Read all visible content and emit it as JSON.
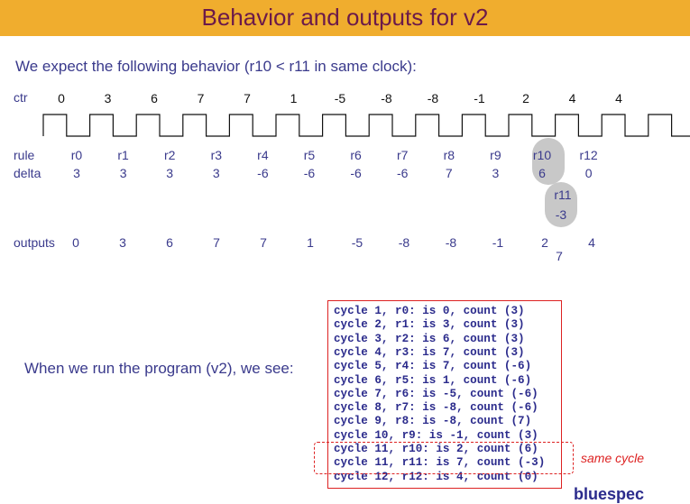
{
  "slide": {
    "title": "Behavior and outputs for v2",
    "intro": "We expect the following behavior (r10 < r11 in same clock):",
    "run_text": "When we run the program (v2), we see:",
    "same_cycle": "same cycle",
    "logo": "bluespec"
  },
  "timeline": {
    "ctr_label": "ctr",
    "ctr_values": [
      "0",
      "3",
      "6",
      "7",
      "7",
      "1",
      "-5",
      "-8",
      "-8",
      "-1",
      "2",
      "4",
      "4"
    ],
    "rule_label": "rule",
    "rules": [
      "r0",
      "r1",
      "r2",
      "r3",
      "r4",
      "r5",
      "r6",
      "r7",
      "r8",
      "r9",
      "r10",
      "r12"
    ],
    "delta_label": "delta",
    "deltas": [
      "3",
      "3",
      "3",
      "3",
      "-6",
      "-6",
      "-6",
      "-6",
      "7",
      "3",
      "6",
      "0"
    ],
    "extra_rule": "r11",
    "extra_delta": "-3",
    "outputs_label": "outputs",
    "outputs": [
      "0",
      "3",
      "6",
      "7",
      "7",
      "1",
      "-5",
      "-8",
      "-8",
      "-1",
      "2",
      "4"
    ],
    "extra_output": "7"
  },
  "log_lines": [
    "cycle 1, r0: is 0, count (3)",
    "cycle 2, r1: is 3, count (3)",
    "cycle 3, r2: is 6, count (3)",
    "cycle 4, r3: is 7, count (3)",
    "cycle 5, r4: is 7, count (-6)",
    "cycle 6, r5: is 1, count (-6)",
    "cycle 7, r6: is -5, count (-6)",
    "cycle 8, r7: is -8, count (-6)",
    "cycle 9, r8: is -8, count (7)",
    "cycle 10, r9: is -1, count (3)",
    "cycle 11, r10: is 2, count (6)",
    "cycle 11, r11: is 7, count (-3)",
    "cycle 12, r12: is 4, count (0)"
  ]
}
